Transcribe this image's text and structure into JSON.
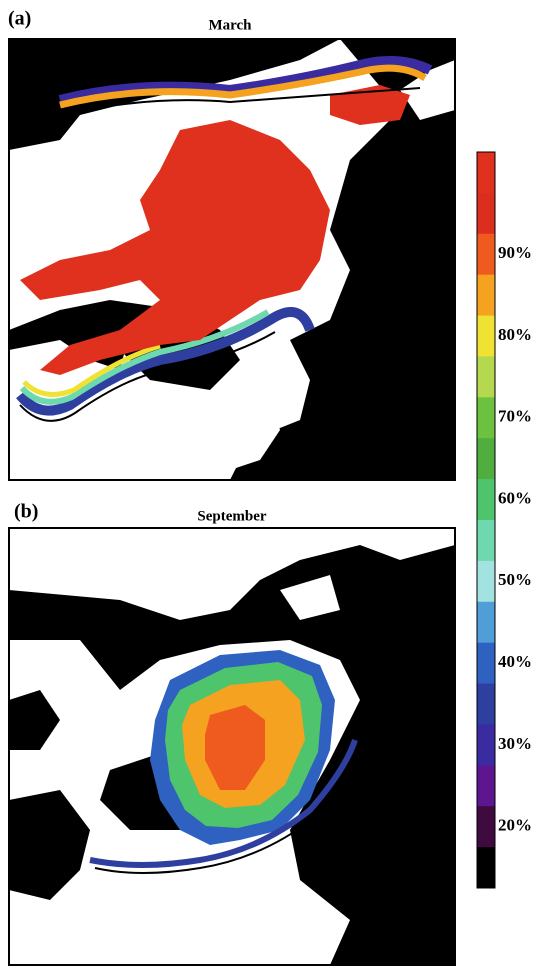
{
  "panels": [
    {
      "label": "(a)",
      "title": "March"
    },
    {
      "label": "(b)",
      "title": "September"
    }
  ],
  "colorbar": {
    "colors": [
      "#e0301e",
      "#dc2e1f",
      "#ef5a1e",
      "#f4a21f",
      "#f0e232",
      "#b4d84e",
      "#6cc23e",
      "#4fae3e",
      "#4ec46c",
      "#6ed8ae",
      "#a2e2e0",
      "#4f9ed8",
      "#2f62c0",
      "#2e3fa0",
      "#3a2ca0",
      "#5e1690",
      "#3e0a40",
      "#000000"
    ],
    "lim": [
      12.5,
      102.5
    ],
    "ticks": [
      {
        "value": 90,
        "label": "90%"
      },
      {
        "value": 80,
        "label": "80%"
      },
      {
        "value": 70,
        "label": "70%"
      },
      {
        "value": 60,
        "label": "60%"
      },
      {
        "value": 50,
        "label": "50%"
      },
      {
        "value": 40,
        "label": "40%"
      },
      {
        "value": 30,
        "label": "30%"
      },
      {
        "value": 20,
        "label": "20%"
      }
    ]
  }
}
